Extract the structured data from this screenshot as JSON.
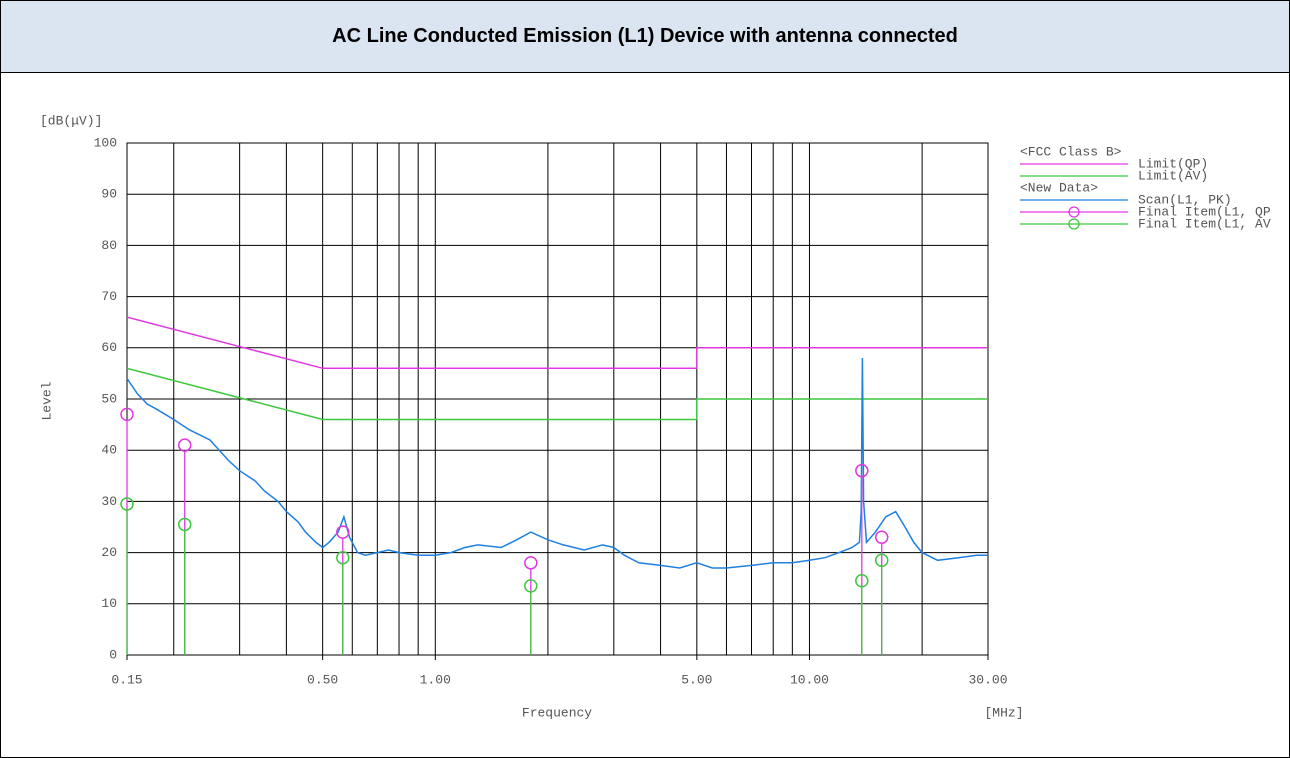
{
  "header": {
    "title": "AC Line Conducted Emission (L1) Device with antenna connected"
  },
  "chart_data": {
    "type": "line",
    "xscale": "log",
    "y_unit": "[dB(μV)]",
    "ylabel": "Level",
    "xlabel": "Frequency",
    "x_unit": "[MHz]",
    "xlim": [
      0.15,
      30
    ],
    "ylim": [
      0,
      100
    ],
    "xticks": [
      {
        "value": 0.15,
        "label": "0.15"
      },
      {
        "value": 0.5,
        "label": "0.50"
      },
      {
        "value": 1,
        "label": "1.00"
      },
      {
        "value": 5,
        "label": "5.00"
      },
      {
        "value": 10,
        "label": "10.00"
      },
      {
        "value": 30,
        "label": "30.00"
      }
    ],
    "xgrid": [
      0.2,
      0.3,
      0.4,
      0.5,
      0.6,
      0.7,
      0.8,
      0.9,
      1,
      2,
      3,
      4,
      5,
      6,
      7,
      8,
      9,
      10,
      20
    ],
    "yticks": [
      0,
      10,
      20,
      30,
      40,
      50,
      60,
      70,
      80,
      90,
      100
    ],
    "grid": true,
    "legend_headers": [
      "<FCC Class B>",
      "<New Data>"
    ],
    "series": [
      {
        "name": "Limit(QP)",
        "color": "#e038e0",
        "x": [
          0.15,
          0.5,
          5,
          5,
          30
        ],
        "values": [
          66,
          56,
          56,
          60,
          60
        ]
      },
      {
        "name": "Limit(AV)",
        "color": "#3cc83c",
        "x": [
          0.15,
          0.5,
          5,
          5,
          30
        ],
        "values": [
          56,
          46,
          46,
          50,
          50
        ]
      },
      {
        "name": "Scan(L1, PK)",
        "color": "#1f80e0",
        "x": [
          0.15,
          0.16,
          0.17,
          0.18,
          0.2,
          0.22,
          0.25,
          0.28,
          0.3,
          0.33,
          0.35,
          0.38,
          0.4,
          0.43,
          0.45,
          0.48,
          0.5,
          0.52,
          0.55,
          0.57,
          0.59,
          0.62,
          0.65,
          0.7,
          0.75,
          0.8,
          0.9,
          1.0,
          1.1,
          1.2,
          1.3,
          1.5,
          1.65,
          1.8,
          2.0,
          2.2,
          2.5,
          2.8,
          3.0,
          3.2,
          3.5,
          4.0,
          4.5,
          5.0,
          5.5,
          6.0,
          7.0,
          8.0,
          9.0,
          10.0,
          11.0,
          12.0,
          13.0,
          13.6,
          13.75,
          13.85,
          13.95,
          14.2,
          15.0,
          16.0,
          17.0,
          18.0,
          19.0,
          20.0,
          22.0,
          25.0,
          28.0,
          30.0
        ],
        "values": [
          54,
          51,
          49,
          48,
          46,
          44,
          42,
          38,
          36,
          34,
          32,
          30,
          28,
          26,
          24,
          22,
          21,
          22,
          24,
          27,
          23,
          20,
          19.5,
          20,
          20.5,
          20,
          19.5,
          19.5,
          20,
          21,
          21.5,
          21,
          22.5,
          24,
          22.5,
          21.5,
          20.5,
          21.5,
          21,
          19.5,
          18,
          17.5,
          17,
          18,
          17,
          17,
          17.5,
          18,
          18,
          18.5,
          19,
          20,
          21,
          22,
          28,
          58,
          30,
          22,
          24,
          27,
          28,
          25,
          22,
          20,
          18.5,
          19,
          19.5,
          19.5
        ]
      },
      {
        "name": "Final Item(L1, QP",
        "color": "#e038e0",
        "marker": "circle",
        "stems": true,
        "x": [
          0.15,
          0.214,
          0.566,
          1.8,
          13.8,
          15.6
        ],
        "values": [
          47,
          41,
          24,
          18,
          36,
          23
        ]
      },
      {
        "name": "Final Item(L1, AV",
        "color": "#3cc83c",
        "marker": "circle",
        "stems": true,
        "x": [
          0.15,
          0.214,
          0.566,
          1.8,
          13.8,
          15.6
        ],
        "values": [
          29.5,
          25.5,
          19,
          13.5,
          14.5,
          18.5
        ]
      }
    ]
  }
}
